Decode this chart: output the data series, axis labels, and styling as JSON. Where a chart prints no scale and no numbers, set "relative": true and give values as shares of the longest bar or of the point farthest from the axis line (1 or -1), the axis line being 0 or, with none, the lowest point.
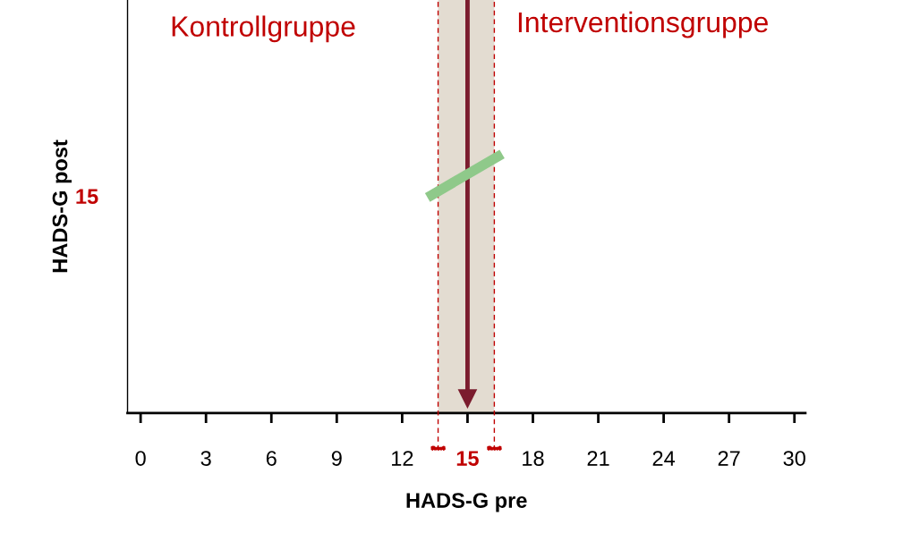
{
  "chart_data": {
    "type": "line",
    "relative": true,
    "xlabel": "HADS-G pre",
    "ylabel": "HADS-G post",
    "xlim": [
      -0.6,
      30.5
    ],
    "xticks": [
      0,
      3,
      6,
      9,
      12,
      15,
      18,
      21,
      24,
      27,
      30
    ],
    "series": [
      {
        "color": "#8fc98a",
        "x": [
          13.36,
          16.39
        ],
        "values": [
          0.85,
          1.0
        ]
      }
    ],
    "bands": [
      {
        "axis": "x",
        "from": 13.65,
        "to": 16.23,
        "color": "#e3dcd1"
      }
    ],
    "ref_lines": [
      {
        "axis": "x",
        "value": 13.65,
        "color": "#c00000",
        "line_style": "dashed"
      },
      {
        "axis": "x",
        "value": 16.23,
        "color": "#c00000",
        "line_style": "dashed"
      },
      {
        "axis": "x",
        "value": 15,
        "color": "#7b1c2e",
        "line_style": "solid"
      }
    ],
    "annotations": [
      "Kontrollgruppe",
      "Interventionsgruppe",
      "15"
    ],
    "grid": false,
    "legend": false,
    "tick_labels": "x"
  }
}
